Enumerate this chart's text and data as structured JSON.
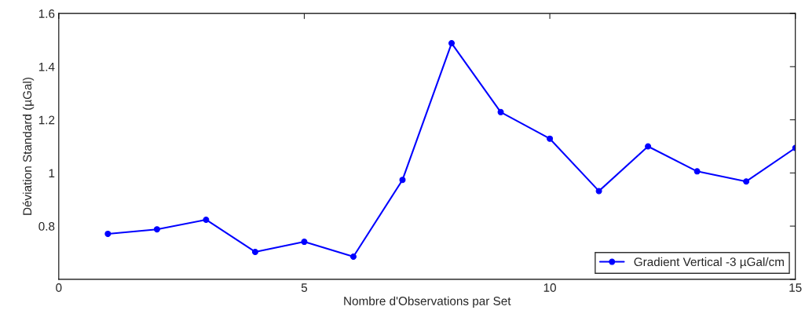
{
  "chart_data": {
    "type": "line",
    "xlabel": "Nombre d'Observations par Set",
    "ylabel": "Déviation Standard (µGal)",
    "x": [
      1,
      2,
      3,
      4,
      5,
      6,
      7,
      8,
      9,
      10,
      11,
      12,
      13,
      14,
      15
    ],
    "series": [
      {
        "name": "Gradient Vertical -3 µGal/cm",
        "color": "#0000ff",
        "values": [
          0.771,
          0.788,
          0.824,
          0.703,
          0.741,
          0.685,
          0.974,
          1.488,
          1.229,
          1.129,
          0.932,
          1.1,
          1.006,
          0.968,
          1.094
        ]
      }
    ],
    "xlim": [
      0,
      15
    ],
    "xticks": [
      0,
      5,
      10,
      15
    ],
    "ylim": [
      0.6,
      1.6
    ],
    "yticks": [
      {
        "value": 0.6,
        "label": null
      },
      0.8,
      1,
      1.2,
      1.4,
      1.6
    ],
    "marker": "circle",
    "line_style": "solid",
    "legend": "bottom right",
    "grid": false
  }
}
